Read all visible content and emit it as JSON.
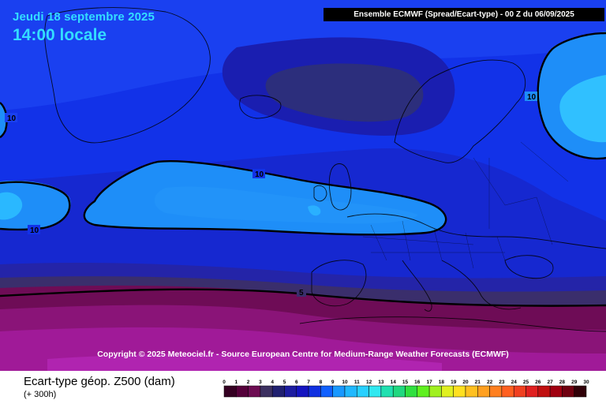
{
  "header": {
    "date": "Jeudi 18 septembre 2025",
    "time": "14:00 locale",
    "model_run": "Ensemble ECMWF  (Spread/Ecart-type) - 00 Z du 06/09/2025"
  },
  "copyright": "Copyright © 2025 Meteociel.fr - Source European Centre for Medium-Range Weather Forecasts (ECMWF)",
  "footer": {
    "variable": "Ecart-type géop. Z500 (dam)",
    "lead": "(+ 300h)"
  },
  "contour_labels": [
    "10",
    "10",
    "10",
    "10",
    "5"
  ],
  "legend": {
    "ticks": [
      "0",
      "1",
      "2",
      "3",
      "4",
      "5",
      "6",
      "7",
      "8",
      "9",
      "10",
      "11",
      "12",
      "13",
      "14",
      "15",
      "16",
      "17",
      "18",
      "19",
      "20",
      "21",
      "22",
      "23",
      "24",
      "25",
      "26",
      "27",
      "28",
      "29",
      "30"
    ],
    "colors": [
      "#350022",
      "#55003a",
      "#6d0c52",
      "#3c3060",
      "#202070",
      "#1c1ca0",
      "#1414c0",
      "#1030e0",
      "#1060ff",
      "#1898ff",
      "#20b8ff",
      "#28d0ff",
      "#30e8f0",
      "#20e0b0",
      "#20d880",
      "#30e040",
      "#60f020",
      "#a0f020",
      "#e0f020",
      "#ffe020",
      "#ffc020",
      "#ffa020",
      "#ff8020",
      "#ff6020",
      "#f04020",
      "#e02020",
      "#c01010",
      "#a00010",
      "#700010",
      "#300008"
    ]
  }
}
